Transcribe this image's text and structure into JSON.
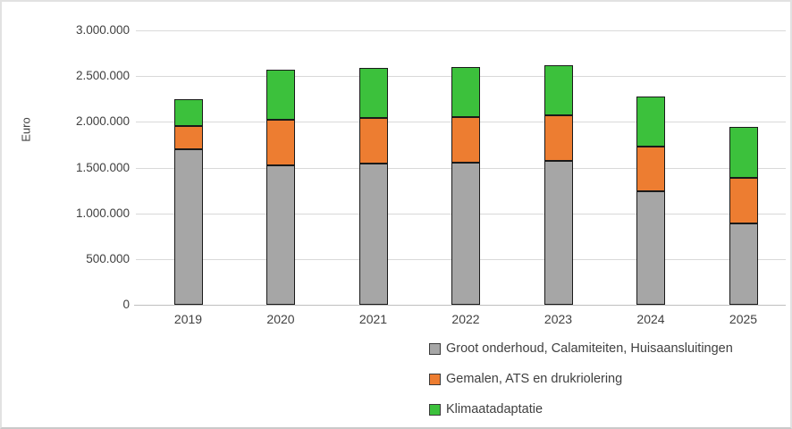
{
  "chart_data": {
    "type": "bar",
    "subtype": "stacked-column",
    "title": "",
    "xlabel": "",
    "ylabel": "Euro",
    "categories": [
      "2019",
      "2020",
      "2021",
      "2022",
      "2023",
      "2024",
      "2025"
    ],
    "series": [
      {
        "name": "Groot onderhoud, Calamiteiten, Huisaansluitingen",
        "color": "#a6a6a6",
        "values": [
          1700000,
          1520000,
          1540000,
          1550000,
          1570000,
          1240000,
          890000
        ]
      },
      {
        "name": "Gemalen, ATS en drukriolering",
        "color": "#ed7d31",
        "values": [
          250000,
          500000,
          500000,
          500000,
          500000,
          490000,
          500000
        ]
      },
      {
        "name": "Klimaatadaptatie",
        "color": "#3cc13c",
        "values": [
          300000,
          550000,
          550000,
          550000,
          550000,
          550000,
          550000
        ]
      }
    ],
    "totals": [
      2250000,
      2570000,
      2590000,
      2600000,
      2620000,
      2280000,
      1940000
    ],
    "ylim": [
      0,
      3000000
    ],
    "ytick_step": 500000,
    "ytick_labels": [
      "0",
      "500.000",
      "1.000.000",
      "1.500.000",
      "2.000.000",
      "2.500.000",
      "3.000.000"
    ],
    "grid": true,
    "legend_position": "bottom-right"
  }
}
